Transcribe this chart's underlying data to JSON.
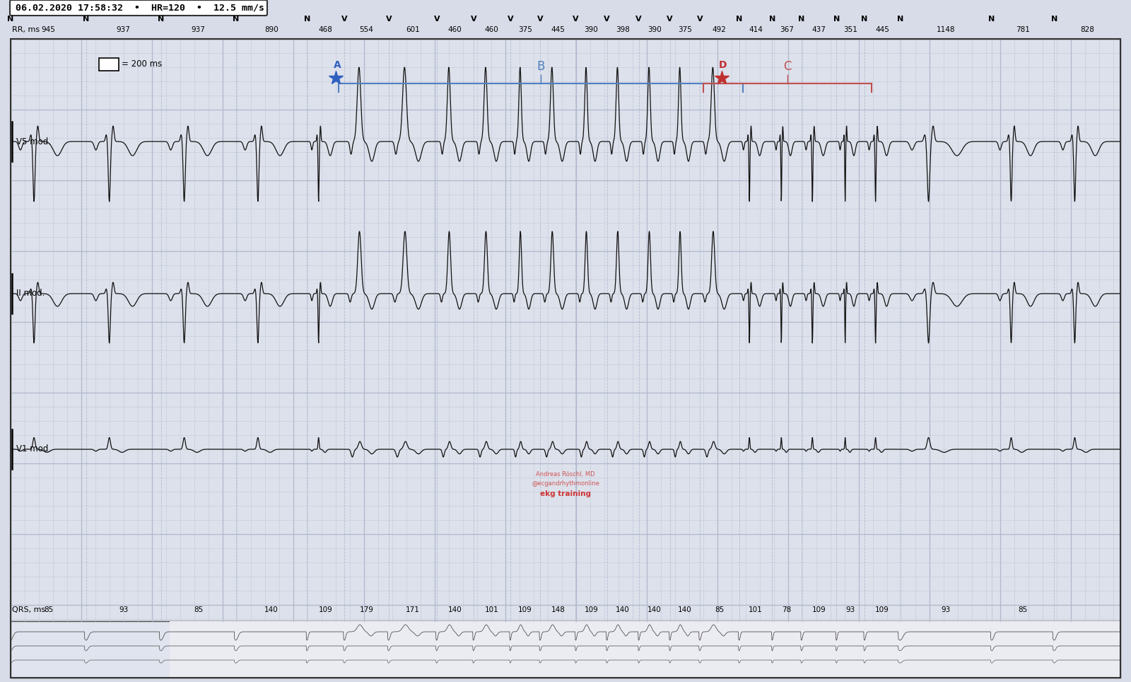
{
  "title_text": "06.02.2020 17:58:32  •  HR=120  •  12.5 mm/s",
  "bg_color": "#d8dce8",
  "ecg_bg": "#dde1eb",
  "grid_minor_color": "#c0c8d8",
  "grid_major_color": "#b0b8cc",
  "line_color": "#111111",
  "rr_labels": [
    "N",
    "N",
    "N",
    "N",
    "N",
    "V",
    "V",
    "V",
    "V",
    "V",
    "V",
    "V",
    "V",
    "V",
    "V",
    "V",
    "N",
    "N",
    "N",
    "N",
    "N",
    "N",
    "N",
    "N"
  ],
  "rr_values": [
    945,
    937,
    937,
    890,
    468,
    554,
    601,
    460,
    460,
    375,
    445,
    390,
    398,
    390,
    375,
    492,
    414,
    367,
    437,
    351,
    445,
    1148,
    781,
    828
  ],
  "qrs_values": [
    85,
    93,
    85,
    140,
    109,
    179,
    171,
    140,
    101,
    109,
    148,
    109,
    140,
    140,
    140,
    85,
    101,
    78,
    109,
    93,
    109,
    93,
    85
  ],
  "lead_labels": [
    "V5 mod.",
    "II mod.",
    "V1 mod."
  ],
  "annotation_A": "A",
  "annotation_B": "B",
  "annotation_C": "C",
  "annotation_D": "D",
  "star_blue_color": "#3060c0",
  "star_red_color": "#c03030",
  "bracket_blue_color": "#5080c0",
  "bracket_red_color": "#c05050",
  "scale_box_text": "= 200 ms",
  "attribution_line1": "Andreas Röschl, MD",
  "attribution_line2": "@ecgandrhythmonline",
  "attribution_line3": "ekg training"
}
